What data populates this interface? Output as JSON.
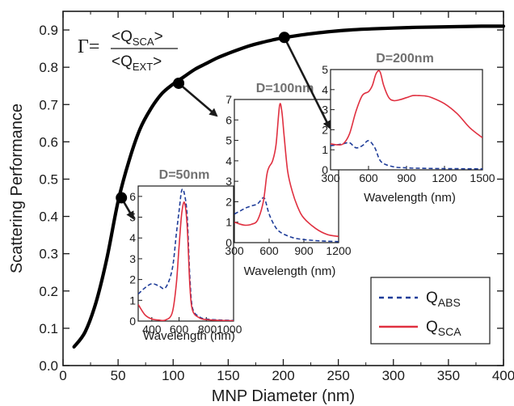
{
  "chart_data": [
    {
      "type": "line",
      "id": "main",
      "xlabel": "MNP Diameter (nm)",
      "ylabel": "Scattering Performance",
      "xlim": [
        0,
        400
      ],
      "ylim": [
        0.0,
        0.95
      ],
      "xticks": [
        0,
        50,
        100,
        150,
        200,
        250,
        300,
        350,
        400
      ],
      "xtick_labels": [
        "0",
        "50",
        "100",
        "150",
        "200",
        "250",
        "300",
        "350",
        "400"
      ],
      "yticks": [
        0.0,
        0.1,
        0.2,
        0.3,
        0.4,
        0.5,
        0.6,
        0.7,
        0.8,
        0.9
      ],
      "ytick_labels": [
        "0.0",
        "0.1",
        "0.2",
        "0.3",
        "0.4",
        "0.5",
        "0.6",
        "0.7",
        "0.8",
        "0.9"
      ],
      "formula": {
        "gamma": "Γ=",
        "numerator": "<Q",
        "numerator_sub": "SCA",
        "denominator": "<Q",
        "denominator_sub": "EXT",
        "close": ">"
      },
      "series": [
        {
          "color": "#000000",
          "x": [
            10,
            20,
            30,
            40,
            50,
            60,
            70,
            80,
            90,
            100,
            110,
            120,
            130,
            140,
            150,
            160,
            170,
            180,
            190,
            200,
            220,
            240,
            260,
            280,
            300,
            320,
            340,
            360,
            380,
            400
          ],
          "y": [
            0.05,
            0.09,
            0.17,
            0.29,
            0.44,
            0.55,
            0.635,
            0.69,
            0.73,
            0.755,
            0.775,
            0.795,
            0.81,
            0.825,
            0.837,
            0.848,
            0.858,
            0.866,
            0.873,
            0.879,
            0.888,
            0.895,
            0.9,
            0.903,
            0.905,
            0.907,
            0.908,
            0.909,
            0.91,
            0.91
          ]
        }
      ],
      "markers": [
        {
          "x": 53,
          "y": 0.45
        },
        {
          "x": 105,
          "y": 0.757
        },
        {
          "x": 201,
          "y": 0.88
        }
      ],
      "legend": {
        "position": "bottom-right",
        "entries": [
          {
            "label": "Q",
            "sub": "ABS",
            "color": "#1f3d99",
            "dash": true
          },
          {
            "label": "Q",
            "sub": "SCA",
            "color": "#e03040",
            "dash": false
          }
        ]
      }
    },
    {
      "type": "line",
      "id": "inset_d50",
      "title": "D=50nm",
      "xlabel": "Wavelength (nm)",
      "xlim": [
        300,
        1000
      ],
      "ylim": [
        0,
        6.5
      ],
      "xticks": [
        400,
        600,
        800,
        1000
      ],
      "xtick_labels": [
        "400",
        "600",
        "8001000"
      ],
      "yticks": [
        0,
        1,
        2,
        3,
        4,
        5,
        6
      ],
      "ytick_labels": [
        "0",
        "1",
        "2",
        "3",
        "4",
        "5",
        "6"
      ],
      "series": [
        {
          "name": "QABS",
          "color": "#1f3d99",
          "dash": true,
          "x": [
            300,
            350,
            400,
            450,
            500,
            550,
            580,
            600,
            620,
            640,
            660,
            680,
            700,
            750,
            800,
            900,
            1000
          ],
          "y": [
            1.3,
            1.6,
            1.8,
            1.7,
            1.6,
            2.5,
            4.2,
            5.3,
            6.3,
            6.1,
            5.0,
            2.0,
            0.6,
            0.2,
            0.1,
            0.05,
            0.03
          ]
        },
        {
          "name": "QSCA",
          "color": "#e03040",
          "dash": false,
          "x": [
            300,
            350,
            400,
            450,
            500,
            550,
            580,
            600,
            620,
            640,
            660,
            680,
            700,
            750,
            800,
            900,
            1000
          ],
          "y": [
            0.8,
            0.3,
            0.1,
            0.05,
            0.05,
            0.4,
            1.8,
            3.6,
            5.2,
            5.7,
            4.5,
            1.6,
            0.5,
            0.15,
            0.07,
            0.03,
            0.02
          ]
        }
      ]
    },
    {
      "type": "line",
      "id": "inset_d100",
      "title": "D=100nm",
      "xlabel": "Wavelength (nm)",
      "xlim": [
        300,
        1200
      ],
      "ylim": [
        0,
        7
      ],
      "xticks": [
        300,
        600,
        900,
        1200
      ],
      "xtick_labels": [
        "300",
        "600",
        "900",
        "1200"
      ],
      "yticks": [
        0,
        1,
        2,
        3,
        4,
        5,
        6,
        7
      ],
      "ytick_labels": [
        "0",
        "1",
        "2",
        "3",
        "4",
        "5",
        "6",
        "7"
      ],
      "series": [
        {
          "name": "QABS",
          "color": "#1f3d99",
          "dash": true,
          "x": [
            300,
            350,
            400,
            450,
            500,
            550,
            570,
            600,
            650,
            700,
            800,
            900,
            1000,
            1100,
            1200
          ],
          "y": [
            1.4,
            1.55,
            1.7,
            1.8,
            1.9,
            2.2,
            2.0,
            1.4,
            0.8,
            0.5,
            0.25,
            0.15,
            0.1,
            0.07,
            0.05
          ]
        },
        {
          "name": "QSCA",
          "color": "#e03040",
          "dash": false,
          "x": [
            300,
            350,
            400,
            450,
            500,
            550,
            580,
            600,
            630,
            660,
            690,
            710,
            730,
            760,
            800,
            850,
            900,
            1000,
            1100,
            1200
          ],
          "y": [
            1.0,
            0.9,
            0.85,
            0.9,
            1.1,
            2.0,
            3.3,
            3.7,
            4.0,
            4.8,
            6.7,
            6.4,
            5.2,
            3.5,
            2.5,
            1.7,
            1.2,
            0.7,
            0.4,
            0.3
          ]
        }
      ]
    },
    {
      "type": "line",
      "id": "inset_d200",
      "title": "D=200nm",
      "xlabel": "Wavelength (nm)",
      "xlim": [
        300,
        1500
      ],
      "ylim": [
        0,
        5
      ],
      "xticks": [
        300,
        600,
        900,
        1200,
        1500
      ],
      "xtick_labels": [
        "300",
        "600",
        "900",
        "1200",
        "1500"
      ],
      "yticks": [
        0,
        1,
        2,
        3,
        4,
        5
      ],
      "ytick_labels": [
        "0",
        "1",
        "2",
        "3",
        "4",
        "5"
      ],
      "series": [
        {
          "name": "QABS",
          "color": "#1f3d99",
          "dash": true,
          "x": [
            300,
            350,
            400,
            450,
            500,
            550,
            600,
            650,
            700,
            800,
            900,
            1000,
            1200,
            1500
          ],
          "y": [
            1.2,
            1.25,
            1.3,
            1.35,
            1.1,
            1.2,
            1.45,
            1.1,
            0.4,
            0.15,
            0.1,
            0.08,
            0.06,
            0.05
          ]
        },
        {
          "name": "QSCA",
          "color": "#e03040",
          "dash": false,
          "x": [
            300,
            350,
            400,
            450,
            500,
            550,
            600,
            630,
            660,
            690,
            720,
            760,
            800,
            850,
            900,
            950,
            1000,
            1050,
            1100,
            1200,
            1300,
            1400,
            1500
          ],
          "y": [
            1.3,
            1.25,
            1.3,
            1.8,
            2.9,
            3.7,
            3.9,
            4.2,
            4.8,
            4.9,
            4.2,
            3.6,
            3.45,
            3.5,
            3.6,
            3.7,
            3.7,
            3.68,
            3.6,
            3.3,
            2.8,
            2.1,
            1.6
          ]
        }
      ]
    }
  ]
}
